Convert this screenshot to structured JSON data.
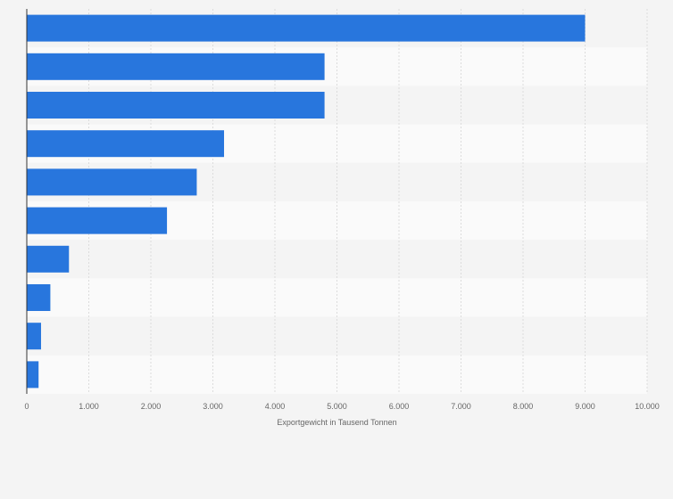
{
  "chart_data": {
    "type": "bar",
    "orientation": "horizontal",
    "title": "",
    "xlabel": "Exportgewicht in Tausend Tonnen",
    "ylabel": "",
    "xlim": [
      0,
      10000
    ],
    "x_ticks": [
      0,
      1000,
      2000,
      3000,
      4000,
      5000,
      6000,
      7000,
      8000,
      9000,
      10000
    ],
    "x_tick_labels": [
      "0",
      "1.000",
      "2.000",
      "3.000",
      "4.000",
      "5.000",
      "6.000",
      "7.000",
      "8.000",
      "9.000",
      "10.000"
    ],
    "categories": [
      "",
      "",
      "",
      "",
      "",
      "",
      "",
      "",
      "",
      ""
    ],
    "values": [
      9000,
      4800,
      4800,
      3180,
      2740,
      2260,
      680,
      380,
      230,
      190
    ],
    "grid": true,
    "bar_color": "#2876dd",
    "band_colors": [
      "#f4f4f4",
      "#fafafa"
    ]
  }
}
